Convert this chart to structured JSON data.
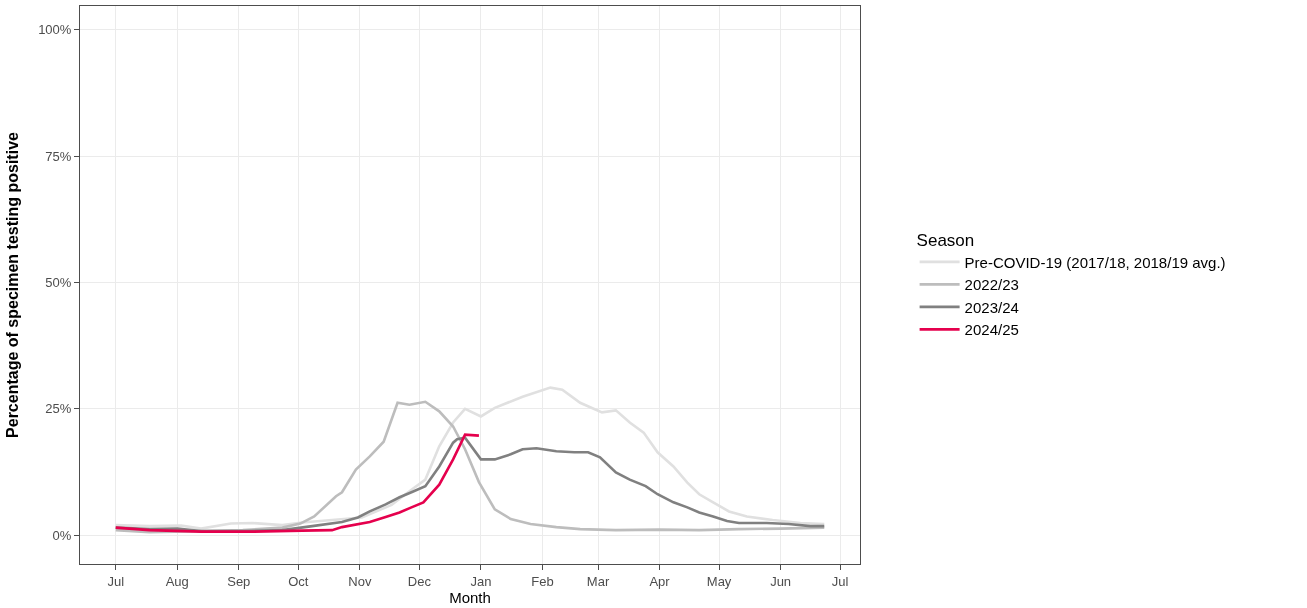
{
  "chart_data": {
    "type": "line",
    "xlabel": "Month",
    "ylabel": "Percentage of specimen testing positive",
    "legend_title": "Season",
    "legend": "right",
    "grid": true,
    "line_style": "solid",
    "marker": "none",
    "xlim": [
      "2024-06-13",
      "2025-07-11"
    ],
    "xticks": [
      {
        "value": "2024-07-01",
        "label": "Jul"
      },
      {
        "value": "2024-08-01",
        "label": "Aug"
      },
      {
        "value": "2024-09-01",
        "label": "Sep"
      },
      {
        "value": "2024-10-01",
        "label": "Oct"
      },
      {
        "value": "2024-11-01",
        "label": "Nov"
      },
      {
        "value": "2024-12-01",
        "label": "Dec"
      },
      {
        "value": "2025-01-01",
        "label": "Jan"
      },
      {
        "value": "2025-02-01",
        "label": "Feb"
      },
      {
        "value": "2025-03-01",
        "label": "Mar"
      },
      {
        "value": "2025-04-01",
        "label": "Apr"
      },
      {
        "value": "2025-05-01",
        "label": "May"
      },
      {
        "value": "2025-06-01",
        "label": "Jun"
      },
      {
        "value": "2025-07-01",
        "label": "Jul"
      }
    ],
    "ylim": [
      -5.7,
      104.7
    ],
    "yticks": [
      {
        "value": 0,
        "label": "0%"
      },
      {
        "value": 25,
        "label": "25%"
      },
      {
        "value": 50,
        "label": "50%"
      },
      {
        "value": 75,
        "label": "75%"
      },
      {
        "value": 100,
        "label": "100%"
      }
    ],
    "series": [
      {
        "name": "Pre-COVID-19 (2017/18, 2018/19 avg.)",
        "color": "#e0e0e0",
        "x": [
          "2024-07-01",
          "2024-07-18",
          "2024-08-03",
          "2024-08-13",
          "2024-08-28",
          "2024-09-08",
          "2024-09-23",
          "2024-10-03",
          "2024-10-18",
          "2024-11-02",
          "2024-11-17",
          "2024-11-27",
          "2024-12-04",
          "2024-12-11",
          "2024-12-18",
          "2024-12-24",
          "2025-01-01",
          "2025-01-08",
          "2025-01-22",
          "2025-02-05",
          "2025-02-11",
          "2025-02-20",
          "2025-03-03",
          "2025-03-10",
          "2025-03-17",
          "2025-03-24",
          "2025-03-31",
          "2025-04-08",
          "2025-04-15",
          "2025-04-21",
          "2025-04-28",
          "2025-05-06",
          "2025-05-15",
          "2025-05-28",
          "2025-06-11",
          "2025-06-23"
        ],
        "values": [
          2,
          1.8,
          1.9,
          1.3,
          2.3,
          2.4,
          2,
          2.5,
          3,
          3.5,
          6,
          9,
          11,
          17.6,
          22.3,
          25,
          23.5,
          25.2,
          27.4,
          29.2,
          28.8,
          26.2,
          24.3,
          24.7,
          22.3,
          20.3,
          16.4,
          13.6,
          10.4,
          8.1,
          6.5,
          4.7,
          3.7,
          3,
          2.4,
          2.2
        ]
      },
      {
        "name": "2022/23",
        "color": "#bdbdbd",
        "x": [
          "2024-07-01",
          "2024-07-18",
          "2024-08-13",
          "2024-09-03",
          "2024-09-23",
          "2024-10-02",
          "2024-10-09",
          "2024-10-20",
          "2024-10-23",
          "2024-10-30",
          "2024-11-06",
          "2024-11-13",
          "2024-11-20",
          "2024-11-26",
          "2024-12-04",
          "2024-12-11",
          "2024-12-18",
          "2024-12-24",
          "2024-12-31",
          "2025-01-08",
          "2025-01-16",
          "2025-01-26",
          "2025-02-08",
          "2025-02-20",
          "2025-03-10",
          "2025-04-01",
          "2025-04-21",
          "2025-05-11",
          "2025-06-01",
          "2025-06-23"
        ],
        "values": [
          1,
          0.6,
          0.8,
          1,
          1.5,
          2.3,
          3.7,
          7.7,
          8.5,
          13,
          15.6,
          18.5,
          26.2,
          25.8,
          26.4,
          24.5,
          21.5,
          17,
          10.5,
          5.1,
          3.2,
          2.2,
          1.6,
          1.2,
          1,
          1.1,
          1,
          1.2,
          1.3,
          1.5
        ]
      },
      {
        "name": "2023/24",
        "color": "#808080",
        "x": [
          "2024-07-01",
          "2024-07-18",
          "2024-08-01",
          "2024-08-13",
          "2024-09-03",
          "2024-09-23",
          "2024-10-08",
          "2024-10-23",
          "2024-10-31",
          "2024-11-06",
          "2024-11-14",
          "2024-11-21",
          "2024-11-27",
          "2024-12-04",
          "2024-12-11",
          "2024-12-18",
          "2024-12-20",
          "2024-12-24",
          "2025-01-01",
          "2025-01-08",
          "2025-01-16",
          "2025-01-22",
          "2025-01-29",
          "2025-02-08",
          "2025-02-17",
          "2025-02-24",
          "2025-03-02",
          "2025-03-10",
          "2025-03-17",
          "2025-03-25",
          "2025-03-31",
          "2025-04-08",
          "2025-04-15",
          "2025-04-21",
          "2025-04-28",
          "2025-05-05",
          "2025-05-11",
          "2025-05-25",
          "2025-06-05",
          "2025-06-16",
          "2025-06-23"
        ],
        "values": [
          1.5,
          1.2,
          1.3,
          0.8,
          0.8,
          1,
          1.8,
          2.6,
          3.5,
          4.7,
          6.1,
          7.5,
          8.5,
          9.7,
          13.6,
          18.3,
          19,
          19.3,
          15,
          15,
          16,
          17,
          17.2,
          16.6,
          16.4,
          16.4,
          15.4,
          12.4,
          11,
          9.7,
          8.1,
          6.5,
          5.5,
          4.5,
          3.7,
          2.8,
          2.4,
          2.4,
          2.2,
          1.8,
          1.8
        ]
      },
      {
        "name": "2024/25",
        "color": "#e5004d",
        "x": [
          "2024-07-01",
          "2024-07-18",
          "2024-08-13",
          "2024-09-08",
          "2024-10-03",
          "2024-10-18",
          "2024-10-23",
          "2024-11-06",
          "2024-11-14",
          "2024-11-21",
          "2024-11-27",
          "2024-12-03",
          "2024-12-11",
          "2024-12-18",
          "2024-12-24",
          "2024-12-31"
        ],
        "values": [
          1.5,
          1,
          0.7,
          0.7,
          0.9,
          1,
          1.6,
          2.6,
          3.6,
          4.5,
          5.5,
          6.5,
          10,
          15,
          19.9,
          19.7
        ]
      }
    ]
  }
}
